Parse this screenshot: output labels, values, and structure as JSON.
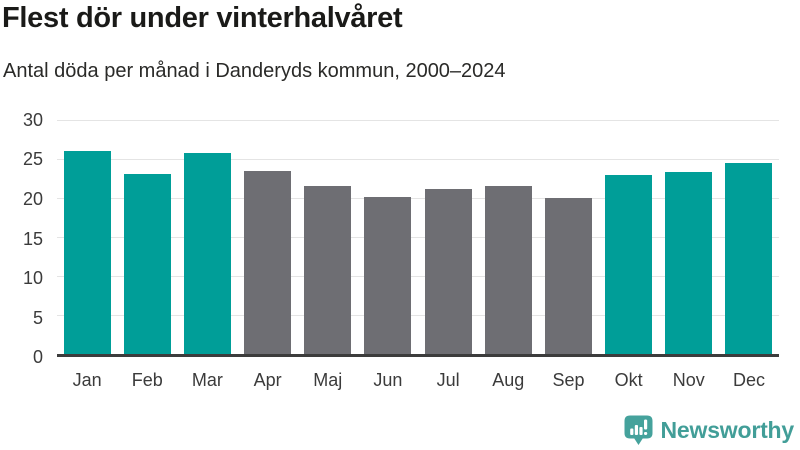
{
  "header": {
    "title": "Flest dör under vinterhalvåret",
    "subtitle": "Antal döda per månad i Danderyds kommun, 2000–2024"
  },
  "chart_data": {
    "type": "bar",
    "title": "Flest dör under vinterhalvåret",
    "subtitle": "Antal döda per månad i Danderyds kommun, 2000–2024",
    "categories": [
      "Jan",
      "Feb",
      "Mar",
      "Apr",
      "Maj",
      "Jun",
      "Jul",
      "Aug",
      "Sep",
      "Okt",
      "Nov",
      "Dec"
    ],
    "values": [
      26.0,
      23.1,
      25.8,
      23.4,
      21.5,
      20.1,
      21.1,
      21.5,
      20.0,
      23.0,
      23.3,
      24.5
    ],
    "xlabel": "",
    "ylabel": "",
    "ylim": [
      0,
      30
    ],
    "yticks": [
      0,
      5,
      10,
      15,
      20,
      25,
      30
    ],
    "grid": true,
    "legend": false,
    "bar_colors": [
      "teal",
      "teal",
      "teal",
      "gray",
      "gray",
      "gray",
      "gray",
      "gray",
      "gray",
      "teal",
      "teal",
      "teal"
    ],
    "colors": {
      "teal": "#009e98",
      "gray": "#6e6e73",
      "grid": "#e4e4e4",
      "axis": "#3c3c3c"
    }
  },
  "footer": {
    "brand": "Newsworthy",
    "brand_color": "#429e98",
    "logo_icon": "bar-chart-speech-bubble-icon"
  }
}
